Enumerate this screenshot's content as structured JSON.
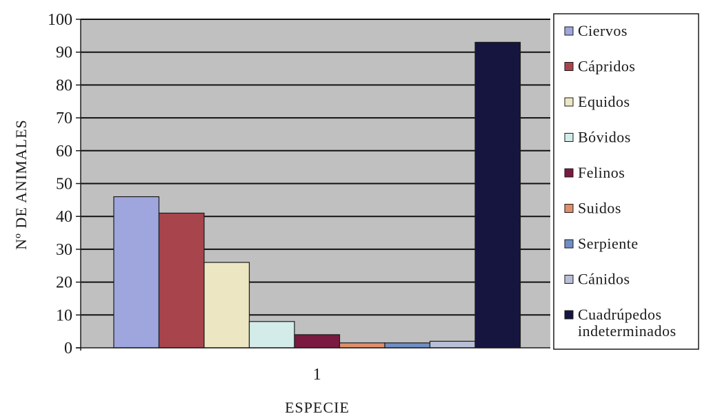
{
  "chart_data": {
    "type": "bar",
    "categories": [
      "1"
    ],
    "series": [
      {
        "name": "Ciervos",
        "values": [
          46
        ],
        "color": "#9fa6dd"
      },
      {
        "name": "Cápridos",
        "values": [
          41
        ],
        "color": "#a8444c"
      },
      {
        "name": "Equidos",
        "values": [
          26
        ],
        "color": "#ece6c2"
      },
      {
        "name": "Bóvidos",
        "values": [
          8
        ],
        "color": "#d3ecea"
      },
      {
        "name": "Felinos",
        "values": [
          4
        ],
        "color": "#7a1a40"
      },
      {
        "name": "Suidos",
        "values": [
          1.5
        ],
        "color": "#e08f6c"
      },
      {
        "name": "Serpiente",
        "values": [
          1.5
        ],
        "color": "#6f8ec4"
      },
      {
        "name": "Cánidos",
        "values": [
          2
        ],
        "color": "#b9bfd6"
      },
      {
        "name": "Cuadrúpedos indeterminados",
        "name_lines": [
          "Cuadrúpedos",
          "indeterminados"
        ],
        "values": [
          93
        ],
        "color": "#151540"
      }
    ],
    "xlabel": "ESPECIE",
    "ylabel": "Nº DE ANIMALES",
    "ylim": [
      0,
      100
    ],
    "yticks": [
      0,
      10,
      20,
      30,
      40,
      50,
      60,
      70,
      80,
      90,
      100
    ],
    "grid": true,
    "plot_background": "#c0c0c0",
    "legend_position": "right"
  }
}
